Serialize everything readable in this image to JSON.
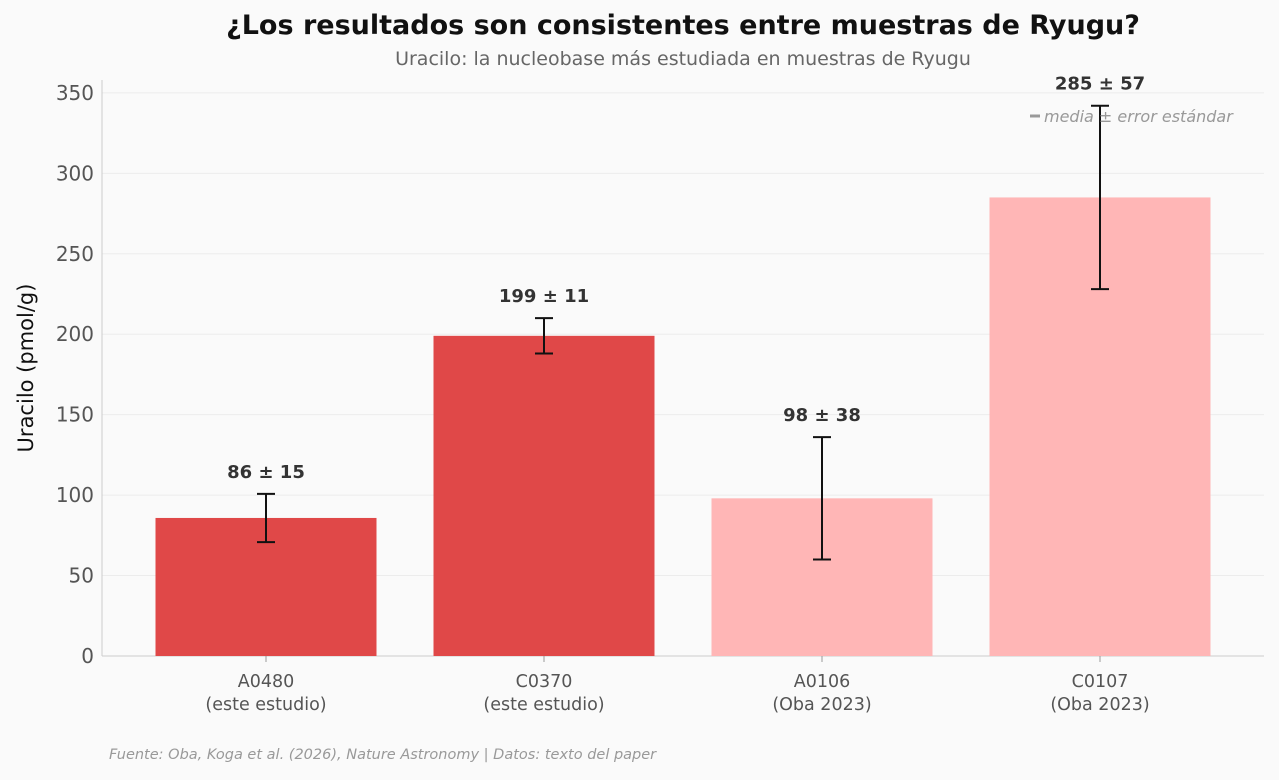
{
  "chart_data": {
    "type": "bar",
    "title": "¿Los resultados son consistentes entre muestras de Ryugu?",
    "subtitle": "Uracilo: la nucleobase más estudiada en muestras de Ryugu",
    "xlabel": "",
    "ylabel": "Uracilo (pmol/g)",
    "ylim": [
      0,
      358
    ],
    "yticks": [
      0,
      50,
      100,
      150,
      200,
      250,
      300,
      350
    ],
    "grid": "horizontal",
    "categories": [
      [
        "A0480",
        "(este estudio)"
      ],
      [
        "C0370",
        "(este estudio)"
      ],
      [
        "A0106",
        "(Oba 2023)"
      ],
      [
        "C0107",
        "(Oba 2023)"
      ]
    ],
    "values": [
      85.8,
      199,
      98,
      285
    ],
    "errors": [
      15,
      11,
      38,
      57
    ],
    "data_labels": [
      "86 ± 15",
      "199 ± 11",
      "98 ± 38",
      "285 ± 57"
    ],
    "colors": [
      "#e04848",
      "#e04848",
      "#ffb6b6",
      "#ffb6b6"
    ],
    "legend": {
      "label": "media ± error estándar",
      "placement": "top-right"
    },
    "footer": "Fuente: Oba, Koga et al. (2026), Nature Astronomy | Datos: texto del paper"
  }
}
